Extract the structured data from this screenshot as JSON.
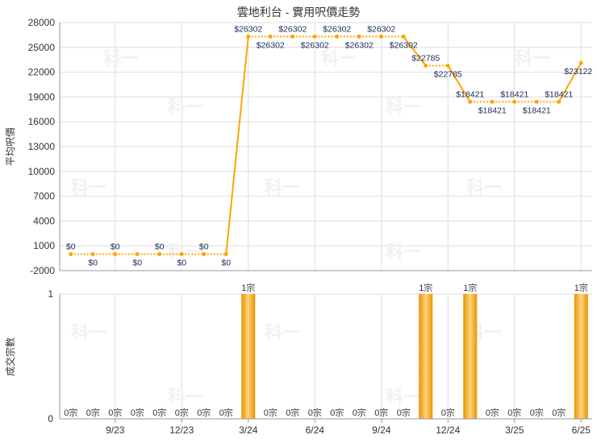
{
  "chart_data": [
    {
      "type": "line",
      "title": "雲地利台 - 實用呎價走勢",
      "ylabel": "平均呎價",
      "ylim": [
        -2000,
        28000
      ],
      "yticks": [
        -2000,
        1000,
        4000,
        7000,
        10000,
        13000,
        16000,
        19000,
        22000,
        25000,
        28000
      ],
      "grid": true,
      "line_color": "#FFA500",
      "x": [
        "2023-07",
        "2023-08",
        "2023-09",
        "2023-10",
        "2023-11",
        "2023-12",
        "2024-01",
        "2024-02",
        "2024-03",
        "2024-04",
        "2024-05",
        "2024-06",
        "2024-07",
        "2024-08",
        "2024-09",
        "2024-10",
        "2024-11",
        "2024-12",
        "2025-01",
        "2025-02",
        "2025-03",
        "2025-04",
        "2025-05",
        "2025-06"
      ],
      "values": [
        0,
        0,
        0,
        0,
        0,
        0,
        0,
        0,
        26302,
        26302,
        26302,
        26302,
        26302,
        26302,
        26302,
        26302,
        22785,
        22785,
        18421,
        18421,
        18421,
        18421,
        18421,
        23122
      ],
      "data_labels": [
        "$0",
        "$0",
        "$0",
        "$0",
        "$0",
        "$0",
        "$0",
        "$0",
        "$26302",
        "$26302",
        "$26302",
        "$26302",
        "$26302",
        "$26302",
        "$26302",
        "$26302",
        "$22785",
        "$22785",
        "$18421",
        "$18421",
        "$18421",
        "$18421",
        "$18421",
        "$23122"
      ]
    },
    {
      "type": "bar",
      "ylabel": "成交宗數",
      "ylim": [
        0,
        1
      ],
      "yticks": [
        0,
        1
      ],
      "bar_color": "#F0A000",
      "x": [
        "2023-07",
        "2023-08",
        "2023-09",
        "2023-10",
        "2023-11",
        "2023-12",
        "2024-01",
        "2024-02",
        "2024-03",
        "2024-04",
        "2024-05",
        "2024-06",
        "2024-07",
        "2024-08",
        "2024-09",
        "2024-10",
        "2024-11",
        "2024-12",
        "2025-01",
        "2025-02",
        "2025-03",
        "2025-04",
        "2025-05",
        "2025-06"
      ],
      "values": [
        0,
        0,
        0,
        0,
        0,
        0,
        0,
        0,
        1,
        0,
        0,
        0,
        0,
        0,
        0,
        0,
        1,
        0,
        1,
        0,
        0,
        0,
        0,
        1
      ],
      "data_labels": [
        "0宗",
        "0宗",
        "0宗",
        "0宗",
        "0宗",
        "0宗",
        "0宗",
        "0宗",
        "1宗",
        "0宗",
        "0宗",
        "0宗",
        "0宗",
        "0宗",
        "0宗",
        "0宗",
        "1宗",
        "0宗",
        "1宗",
        "0宗",
        "0宗",
        "0宗",
        "0宗",
        "1宗"
      ],
      "xtick_labels": [
        "9/23",
        "12/23",
        "3/24",
        "6/24",
        "9/24",
        "12/24",
        "3/25",
        "6/25"
      ],
      "xtick_months": [
        "2023-09",
        "2023-12",
        "2024-03",
        "2024-06",
        "2024-09",
        "2024-12",
        "2025-03",
        "2025-06"
      ]
    }
  ],
  "watermark": "科一"
}
